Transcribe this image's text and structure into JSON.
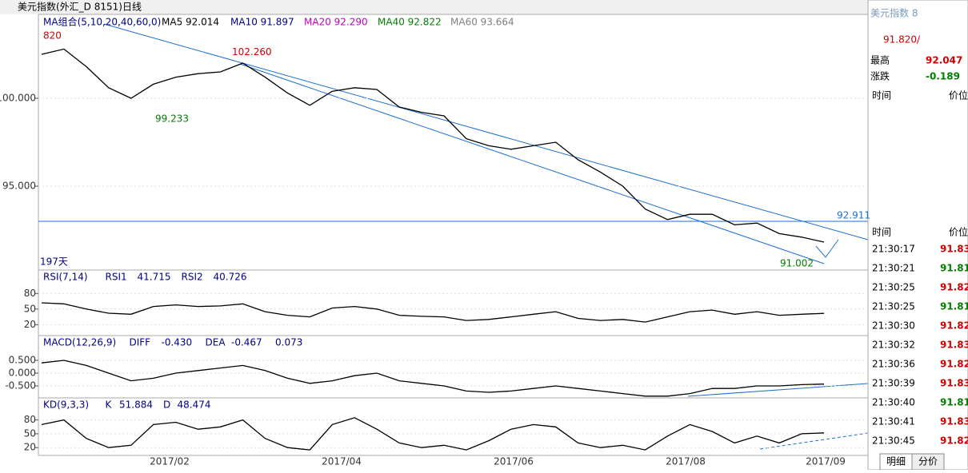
{
  "window_title": "美元指数(外汇_D 8151)日线",
  "main": {
    "ma_header": [
      "MA组合(5,10,20,40,60,0)",
      "MA5 92.014",
      "MA10 91.897",
      "MA20 92.290",
      "MA40 92.822",
      "MA60 93.664"
    ],
    "corner_label": "820",
    "days_label": "197天",
    "ylim": [
      90.23,
      104.68
    ],
    "yticks": [
      {
        "value": 100,
        "label": "100.000"
      },
      {
        "value": 95,
        "label": "95.000"
      }
    ],
    "annotations": [
      {
        "value": 102.26,
        "label": "102.260"
      },
      {
        "value": 99.233,
        "label": "99.233"
      },
      {
        "value": 91.002,
        "label": "91.002"
      },
      {
        "value": 92.911,
        "label": "92.911"
      }
    ],
    "close": [
      102.5,
      102.8,
      101.8,
      100.6,
      100.0,
      100.8,
      101.2,
      101.4,
      101.5,
      102.0,
      101.2,
      100.3,
      99.6,
      100.4,
      100.6,
      100.5,
      99.5,
      99.2,
      99.0,
      97.7,
      97.3,
      97.1,
      97.3,
      97.5,
      96.5,
      95.8,
      95.0,
      93.7,
      93.1,
      93.4,
      93.4,
      92.8,
      92.9,
      92.3,
      92.1,
      91.82
    ]
  },
  "rsi": {
    "header": [
      "RSI(7,14)",
      "RSI1",
      "41.715",
      "RSI2",
      "40.726"
    ],
    "ylim": [
      -1,
      125
    ],
    "yticks": [
      80,
      50,
      20
    ],
    "values": [
      62,
      60,
      50,
      42,
      40,
      55,
      58,
      55,
      56,
      60,
      45,
      38,
      35,
      52,
      55,
      50,
      38,
      36,
      35,
      28,
      30,
      35,
      40,
      45,
      32,
      28,
      30,
      25,
      35,
      45,
      48,
      40,
      45,
      38,
      40,
      41.715
    ]
  },
  "macd": {
    "header": [
      "MACD(12,26,9)",
      "DIFF",
      "-0.430",
      "DEA",
      "-0.467",
      "0.073"
    ],
    "ylim": [
      -0.97,
      1.47
    ],
    "yticks": [
      {
        "value": 0.5,
        "label": "0.500"
      },
      {
        "value": 0,
        "label": "0.000"
      },
      {
        "value": -0.5,
        "label": "-0.500"
      }
    ],
    "values": [
      0.4,
      0.5,
      0.3,
      0,
      -0.3,
      -0.2,
      0,
      0.1,
      0.2,
      0.3,
      0.1,
      -0.2,
      -0.4,
      -0.3,
      -0.1,
      0,
      -0.3,
      -0.4,
      -0.5,
      -0.7,
      -0.75,
      -0.7,
      -0.6,
      -0.5,
      -0.6,
      -0.7,
      -0.8,
      -0.9,
      -0.9,
      -0.8,
      -0.6,
      -0.6,
      -0.5,
      -0.5,
      -0.45,
      -0.43
    ]
  },
  "kd": {
    "header": [
      "KD(9,3,3)",
      "K",
      "51.884",
      "D",
      "48.474"
    ],
    "ylim": [
      3,
      128
    ],
    "yticks": [
      80,
      50,
      20
    ],
    "values": [
      70,
      80,
      40,
      20,
      25,
      70,
      75,
      60,
      65,
      80,
      40,
      20,
      15,
      70,
      85,
      60,
      30,
      20,
      25,
      15,
      35,
      60,
      70,
      65,
      30,
      20,
      25,
      15,
      45,
      70,
      55,
      30,
      45,
      30,
      50,
      51.884
    ]
  },
  "x_labels": [
    "2017/02",
    "2017/04",
    "2017/06",
    "2017/08",
    "2017/09"
  ],
  "side": {
    "title": "美元指数 8",
    "price": "91.820/",
    "high_label": "最高",
    "high": "92.047",
    "change_label": "涨跌",
    "change": "-0.189",
    "time_header": "时间",
    "price_header": "价位",
    "time_header2": "时间",
    "price_header2": "价位",
    "ticks": [
      [
        "21:30:17",
        "91.83"
      ],
      [
        "21:30:21",
        "91.81"
      ],
      [
        "21:30:25",
        "91.82"
      ],
      [
        "21:30:25",
        "91.81"
      ],
      [
        "21:30:30",
        "91.82"
      ],
      [
        "21:30:32",
        "91.83"
      ],
      [
        "21:30:36",
        "91.82"
      ],
      [
        "21:30:39",
        "91.83"
      ],
      [
        "21:30:40",
        "91.81"
      ],
      [
        "21:30:41",
        "91.83"
      ],
      [
        "21:30:45",
        "91.82"
      ]
    ],
    "tabs": [
      "明细",
      "分价"
    ]
  }
}
